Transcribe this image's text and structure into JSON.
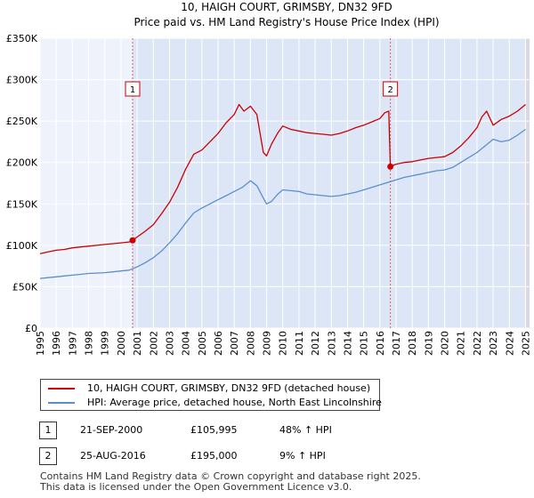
{
  "chart_data": {
    "type": "line",
    "title": "10, HAIGH COURT, GRIMSBY, DN32 9FD",
    "subtitle": "Price paid vs. HM Land Registry's House Price Index (HPI)",
    "xlabel": "",
    "ylabel": "",
    "xlim": [
      1995,
      2025.25
    ],
    "ylim": [
      0,
      350000
    ],
    "grid": true,
    "x_ticks": [
      "1995",
      "1996",
      "1997",
      "1998",
      "1999",
      "2000",
      "2001",
      "2002",
      "2003",
      "2004",
      "2005",
      "2006",
      "2007",
      "2008",
      "2009",
      "2010",
      "2011",
      "2012",
      "2013",
      "2014",
      "2015",
      "2016",
      "2017",
      "2018",
      "2019",
      "2020",
      "2021",
      "2022",
      "2023",
      "2024",
      "2025"
    ],
    "y_ticks": [
      {
        "value": 0,
        "label": "£0"
      },
      {
        "value": 50000,
        "label": "£50K"
      },
      {
        "value": 100000,
        "label": "£100K"
      },
      {
        "value": 150000,
        "label": "£150K"
      },
      {
        "value": 200000,
        "label": "£200K"
      },
      {
        "value": 250000,
        "label": "£250K"
      },
      {
        "value": 300000,
        "label": "£300K"
      },
      {
        "value": 350000,
        "label": "£350K"
      }
    ],
    "series": [
      {
        "name": "10, HAIGH COURT, GRIMSBY, DN32 9FD (detached house)",
        "color": "#cc0000",
        "x": [
          1995.0,
          1995.5,
          1996.0,
          1996.5,
          1997.0,
          1997.5,
          1998.0,
          1998.5,
          1999.0,
          1999.5,
          2000.0,
          2000.5,
          2000.72,
          2001.0,
          2001.5,
          2002.0,
          2002.5,
          2003.0,
          2003.5,
          2004.0,
          2004.5,
          2005.0,
          2005.5,
          2006.0,
          2006.5,
          2007.0,
          2007.3,
          2007.6,
          2008.0,
          2008.4,
          2008.8,
          2009.0,
          2009.3,
          2009.7,
          2010.0,
          2010.5,
          2011.0,
          2011.5,
          2012.0,
          2012.5,
          2013.0,
          2013.5,
          2014.0,
          2014.5,
          2015.0,
          2015.5,
          2016.0,
          2016.3,
          2016.55,
          2016.65,
          2017.0,
          2017.5,
          2018.0,
          2018.5,
          2019.0,
          2019.5,
          2020.0,
          2020.5,
          2021.0,
          2021.5,
          2022.0,
          2022.3,
          2022.6,
          2023.0,
          2023.5,
          2024.0,
          2024.5,
          2025.0
        ],
        "y": [
          90000,
          92000,
          94000,
          95000,
          97000,
          98000,
          99000,
          100000,
          101000,
          102000,
          103000,
          104000,
          105995,
          110000,
          117000,
          125000,
          138000,
          152000,
          170000,
          192000,
          210000,
          215000,
          225000,
          235000,
          248000,
          258000,
          270000,
          262000,
          268000,
          258000,
          212000,
          208000,
          222000,
          236000,
          244000,
          240000,
          238000,
          236000,
          235000,
          234000,
          233000,
          235000,
          238000,
          242000,
          245000,
          249000,
          253000,
          260000,
          262000,
          195000,
          198000,
          200000,
          201000,
          203000,
          205000,
          206000,
          207000,
          212000,
          220000,
          230000,
          242000,
          255000,
          262000,
          245000,
          252000,
          256000,
          262000,
          270000
        ]
      },
      {
        "name": "HPI: Average price, detached house, North East Lincolnshire",
        "color": "#5b8fcc",
        "x": [
          1995.0,
          1995.5,
          1996.0,
          1996.5,
          1997.0,
          1997.5,
          1998.0,
          1998.5,
          1999.0,
          1999.5,
          2000.0,
          2000.5,
          2001.0,
          2001.5,
          2002.0,
          2002.5,
          2003.0,
          2003.5,
          2004.0,
          2004.5,
          2005.0,
          2005.5,
          2006.0,
          2006.5,
          2007.0,
          2007.5,
          2008.0,
          2008.4,
          2008.8,
          2009.0,
          2009.3,
          2009.7,
          2010.0,
          2010.5,
          2011.0,
          2011.5,
          2012.0,
          2012.5,
          2013.0,
          2013.5,
          2014.0,
          2014.5,
          2015.0,
          2015.5,
          2016.0,
          2016.5,
          2017.0,
          2017.5,
          2018.0,
          2018.5,
          2019.0,
          2019.5,
          2020.0,
          2020.5,
          2021.0,
          2021.5,
          2022.0,
          2022.5,
          2023.0,
          2023.5,
          2024.0,
          2024.5,
          2025.0
        ],
        "y": [
          60000,
          61000,
          62000,
          63000,
          64000,
          65000,
          66000,
          66500,
          67000,
          68000,
          69000,
          70000,
          74000,
          79000,
          85000,
          93000,
          103000,
          114000,
          127000,
          139000,
          145000,
          150000,
          155000,
          160000,
          165000,
          170000,
          178000,
          172000,
          157000,
          150000,
          153000,
          162000,
          167000,
          166000,
          165000,
          162000,
          161000,
          160000,
          159000,
          160000,
          162000,
          164000,
          167000,
          170000,
          173000,
          176000,
          179000,
          182000,
          184000,
          186000,
          188000,
          190000,
          191000,
          194000,
          200000,
          206000,
          212000,
          220000,
          228000,
          225000,
          227000,
          233000,
          240000
        ]
      }
    ],
    "sales": [
      {
        "id": "1",
        "x": 2000.72,
        "y": 105995,
        "date": "21-SEP-2000",
        "price": "£105,995",
        "hpi": "48% ↑ HPI"
      },
      {
        "id": "2",
        "x": 2016.65,
        "y": 195000,
        "date": "25-AUG-2016",
        "price": "£195,000",
        "hpi": "9% ↑ HPI"
      }
    ]
  },
  "legend": {
    "property_label": "10, HAIGH COURT, GRIMSBY, DN32 9FD (detached house)",
    "hpi_label": "HPI: Average price, detached house, North East Lincolnshire"
  },
  "sales_table": [
    {
      "id": "1",
      "date": "21-SEP-2000",
      "price": "£105,995",
      "hpi": "48% ↑ HPI"
    },
    {
      "id": "2",
      "date": "25-AUG-2016",
      "price": "£195,000",
      "hpi": "9% ↑ HPI"
    }
  ],
  "footer": {
    "line1": "Contains HM Land Registry data © Crown copyright and database right 2025.",
    "line2": "This data is licensed under the Open Government Licence v3.0."
  },
  "colors": {
    "property": "#cc0000",
    "hpi": "#5b8fcc",
    "shade": "#dde6f6",
    "plot_bg": "#eef2fb",
    "grid": "#ffffff",
    "marker_line": "#e06060"
  }
}
